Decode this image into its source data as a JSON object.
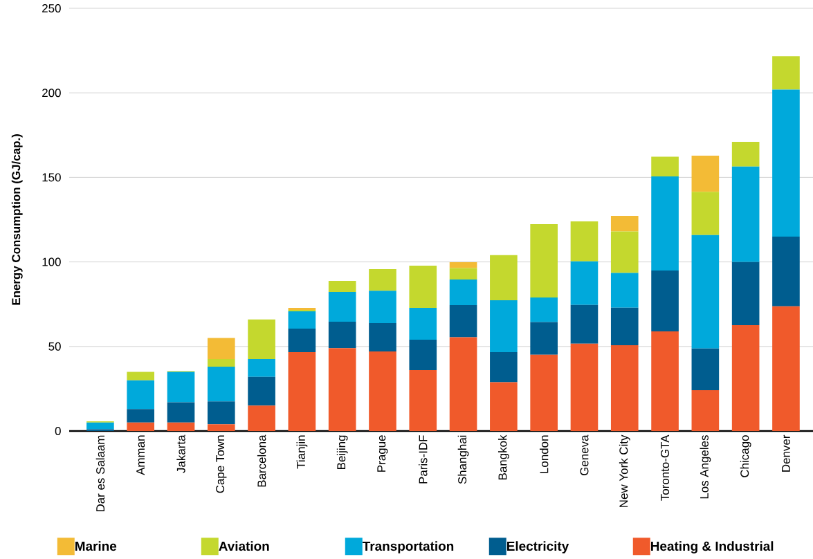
{
  "chart_data": {
    "type": "bar",
    "stacked": true,
    "ylabel": "Energy Consumption (GJ/cap.)",
    "categories": [
      "Dar es Salaam",
      "Amman",
      "Jakarta",
      "Cape Town",
      "Barcelona",
      "Tianjin",
      "Beijing",
      "Prague",
      "Paris-IDF",
      "Shanghai",
      "Bangkok",
      "London",
      "Geneva",
      "New York City",
      "Toronto-GTA",
      "Los Angeles",
      "Chicago",
      "Denver"
    ],
    "series": [
      {
        "name": "Heating & Industrial",
        "color": "#f05a2b",
        "values": [
          null,
          5,
          5,
          4,
          15,
          46.6,
          49,
          47,
          36,
          55.4,
          28.8,
          45.1,
          51.6,
          50.7,
          58.9,
          24.1,
          62.6,
          73.7
        ]
      },
      {
        "name": "Electricity",
        "color": "#005d8f",
        "values": [
          1,
          8,
          12,
          13.5,
          17,
          14,
          15.6,
          16.8,
          18,
          19.1,
          17.8,
          19.3,
          23,
          22.2,
          36,
          24.7,
          37.3,
          41.3
        ]
      },
      {
        "name": "Transportation",
        "color": "#00a9db",
        "values": [
          4,
          17,
          18,
          20.5,
          10.5,
          10.2,
          17.6,
          19.2,
          18.8,
          15.1,
          30.7,
          14.6,
          25.7,
          20.6,
          55.7,
          67.1,
          56.5,
          86.9
        ]
      },
      {
        "name": "Aviation",
        "color": "#c4d82e",
        "values": [
          0.7,
          5,
          0.5,
          4.5,
          23.5,
          0.8,
          6.6,
          12.7,
          25,
          6.8,
          26.7,
          43.3,
          23.7,
          24.5,
          11.6,
          25.6,
          14.6,
          19.8
        ]
      },
      {
        "name": "Marine",
        "color": "#f3bb36",
        "values": [
          null,
          null,
          null,
          12.5,
          null,
          1.2,
          null,
          null,
          null,
          3.4,
          null,
          null,
          null,
          9.2,
          null,
          21.3,
          null,
          null
        ]
      }
    ],
    "ylim": [
      0,
      250
    ],
    "yticks": [
      0,
      50,
      100,
      150,
      200,
      250
    ],
    "grid": "y",
    "legend": "bottom"
  }
}
